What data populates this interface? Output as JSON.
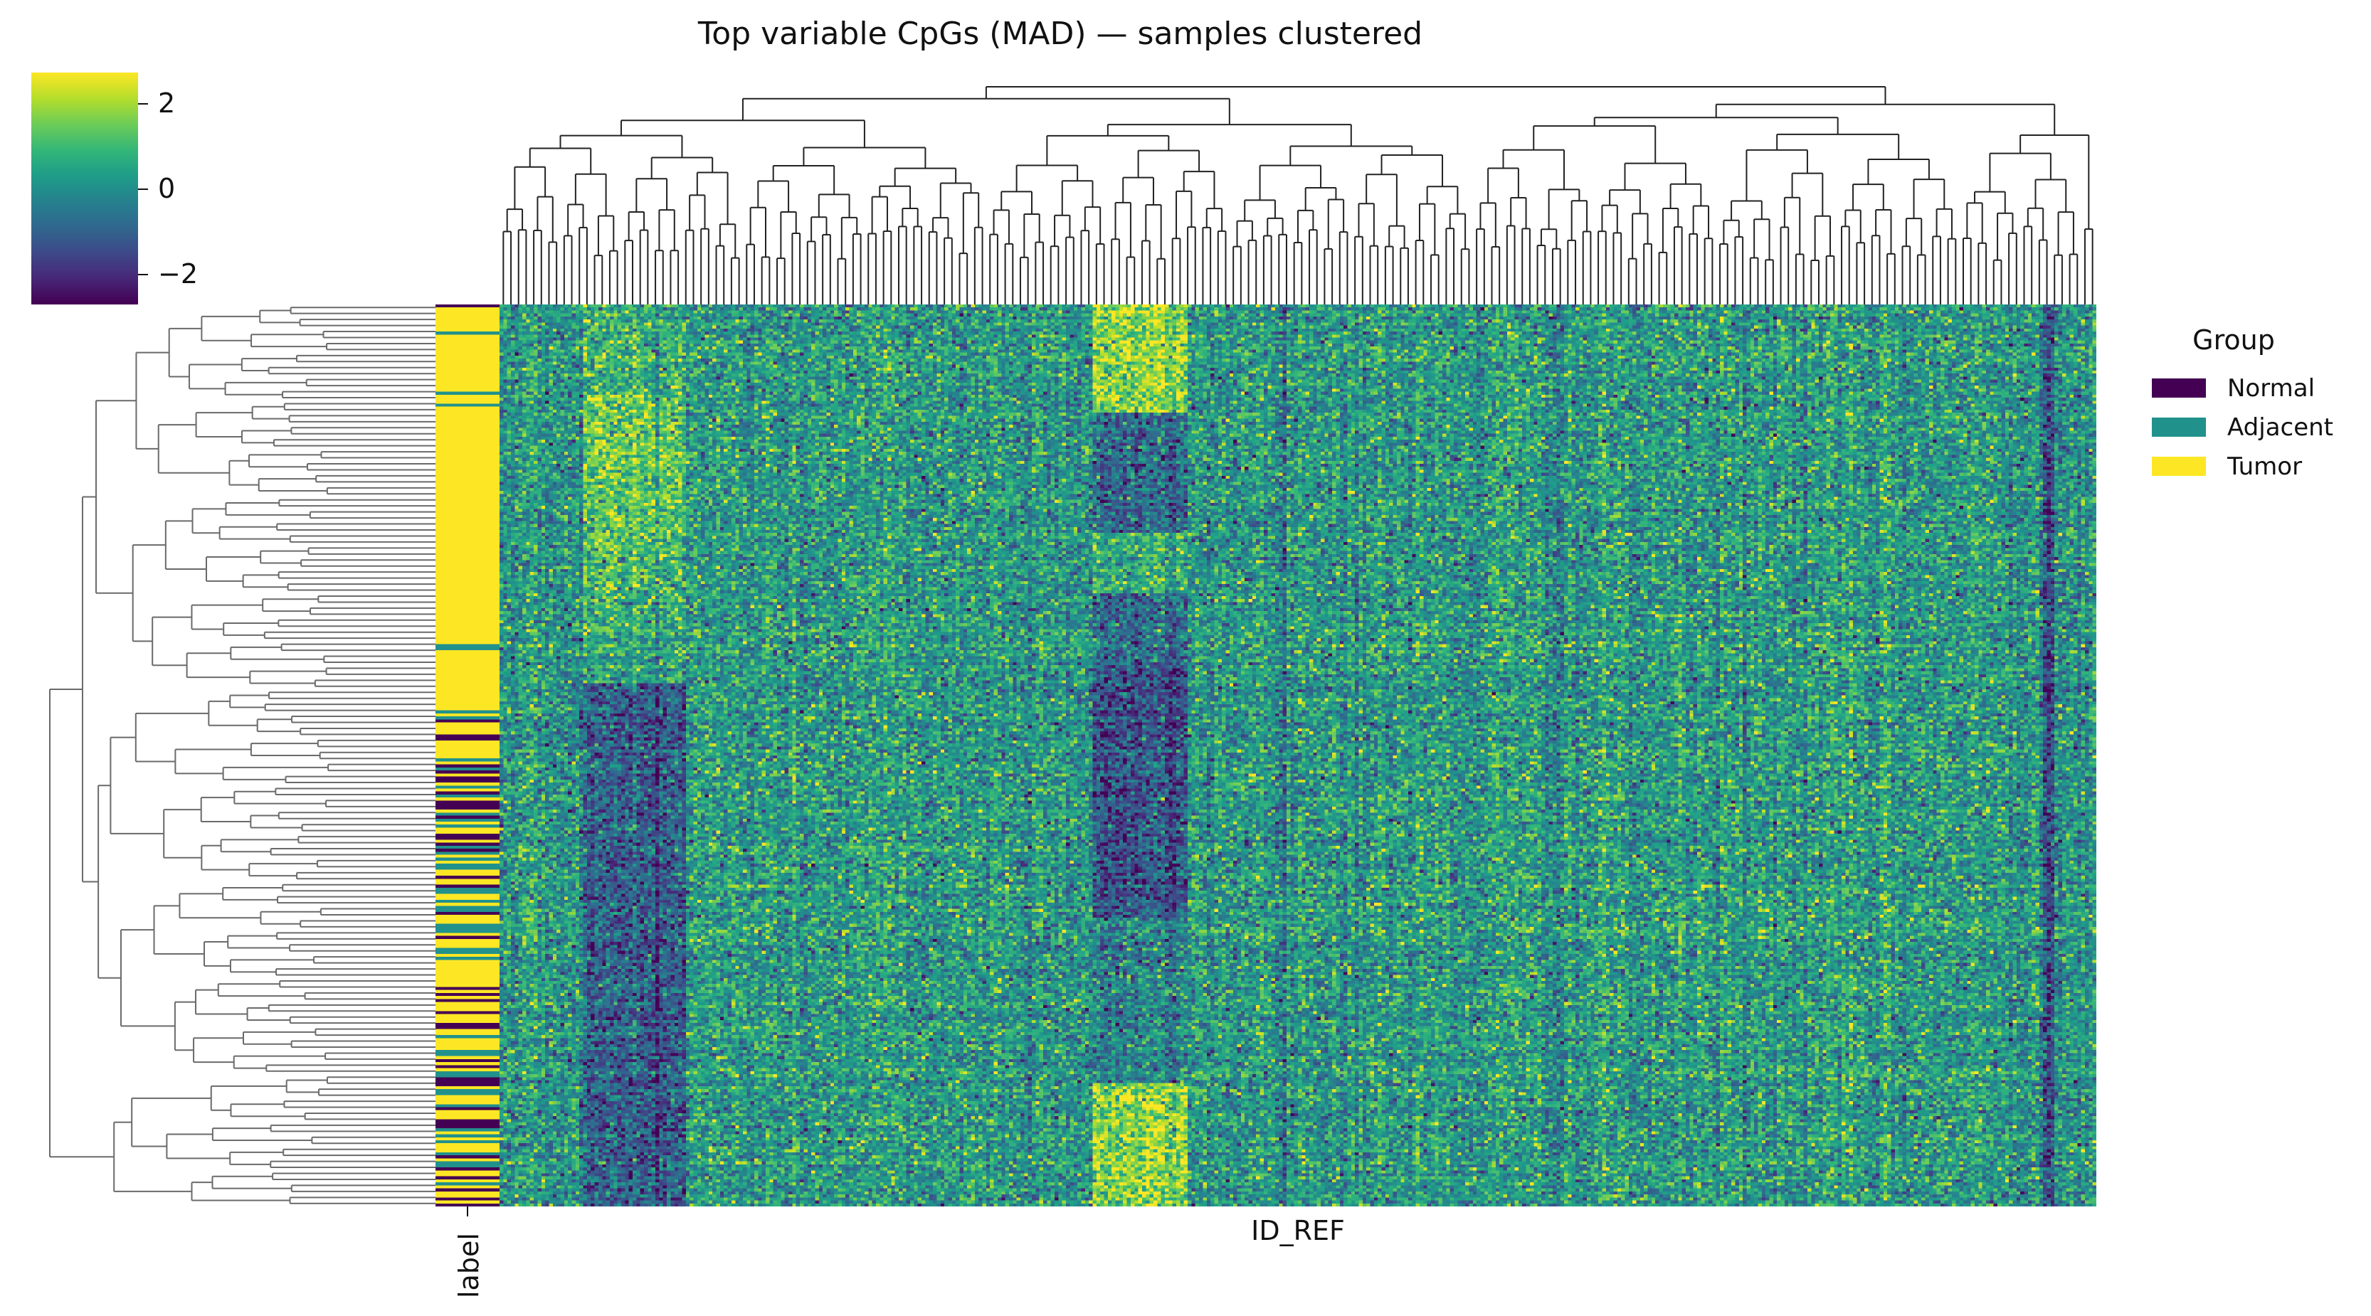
{
  "chart_data": {
    "type": "heatmap",
    "title": "Top variable CpGs (MAD) — samples clustered",
    "xlabel": "ID_REF",
    "row_annotation_label": "label",
    "colormap": "viridis",
    "colorbar": {
      "range": [
        -2.75,
        2.65
      ],
      "ticks": [
        2,
        0,
        -2
      ],
      "tick_labels": [
        "2",
        "0",
        "−2"
      ]
    },
    "legend": {
      "title": "Group",
      "placement": "right",
      "entries": [
        {
          "name": "Normal",
          "color": "#440154"
        },
        {
          "name": "Adjacent",
          "color": "#21918c"
        },
        {
          "name": "Tumor",
          "color": "#fde725"
        }
      ]
    },
    "approx_dimensions": {
      "rows": 300,
      "columns": 420
    },
    "row_groups_top_to_bottom": [
      {
        "group": "Tumor",
        "fraction": 0.45
      },
      {
        "group": "Tumor/Normal/Adjacent mixed",
        "fraction": 0.55
      }
    ],
    "column_blocks": [
      {
        "columns_fraction": [
          0.05,
          0.115
        ],
        "pattern": "high in upper rows, low in lower rows"
      },
      {
        "columns_fraction": [
          0.37,
          0.43
        ],
        "pattern": "high in top rows, low in middle rows, high in bottom rows"
      }
    ],
    "dendrograms": [
      "rows (left)",
      "columns (top)"
    ]
  }
}
